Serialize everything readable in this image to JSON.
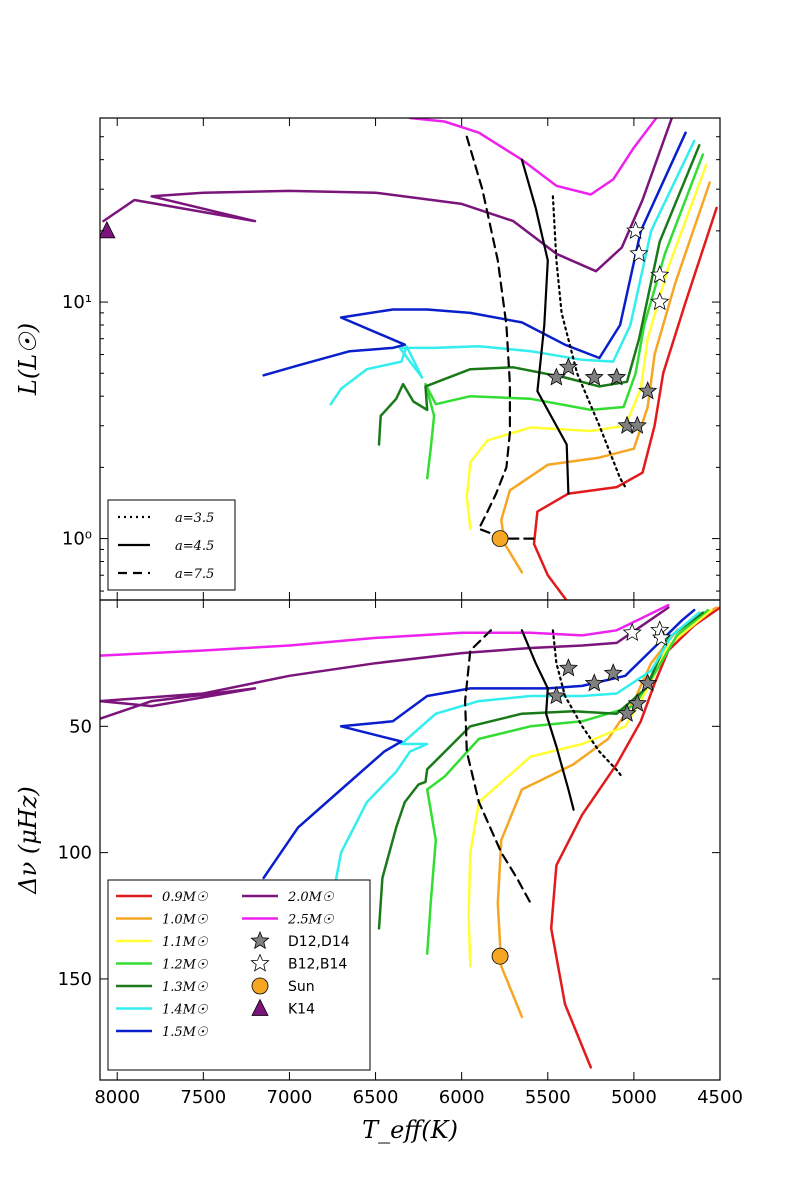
{
  "figure": {
    "xlabel": "T_eff(K)",
    "x_ticks": [
      "8000",
      "7500",
      "7000",
      "6500",
      "6000",
      "5500",
      "5000",
      "4500"
    ]
  },
  "chart_data": [
    {
      "type": "line",
      "panel": "top",
      "xlabel": "T_eff(K)",
      "ylabel": "L(L_sun)",
      "ylabel_display": "L(L☉)",
      "xlim": [
        8100,
        4500
      ],
      "ylim": [
        0.55,
        60
      ],
      "yscale": "log",
      "y_ticks": [
        1,
        10
      ],
      "y_tick_labels": [
        "10⁰",
        "10¹"
      ],
      "legend_position": "lower-left",
      "series": [
        {
          "name": "0.9M☉",
          "color": "#e31a1c",
          "x": [
            5350,
            5500,
            5580,
            5560,
            5380,
            5100,
            4950,
            4880,
            4830,
            4700,
            4520
          ],
          "y": [
            0.5,
            0.7,
            0.95,
            1.3,
            1.55,
            1.65,
            1.9,
            3.0,
            5.0,
            10.0,
            25.0
          ]
        },
        {
          "name": "1.0M☉",
          "color": "#f5a623",
          "x": [
            5650,
            5750,
            5770,
            5720,
            5500,
            5200,
            5000,
            4920,
            4880,
            4760,
            4560
          ],
          "y": [
            0.72,
            0.95,
            1.2,
            1.6,
            2.05,
            2.2,
            2.4,
            3.6,
            6.0,
            12.0,
            32.0
          ]
        },
        {
          "name": "1.1M☉",
          "color": "#ffff33",
          "x": [
            5950,
            5970,
            5950,
            5850,
            5600,
            5250,
            5050,
            4960,
            4920,
            4800,
            4580
          ],
          "y": [
            1.1,
            1.5,
            2.1,
            2.6,
            2.95,
            2.85,
            3.0,
            4.3,
            7.0,
            14.0,
            38.0
          ]
        },
        {
          "name": "1.2M☉",
          "color": "#33dd33",
          "x": [
            6200,
            6180,
            6160,
            6210,
            6150,
            5950,
            5600,
            5250,
            5060,
            4990,
            4940,
            4820,
            4600
          ],
          "y": [
            1.8,
            2.4,
            3.3,
            4.5,
            3.7,
            4.0,
            3.9,
            3.5,
            3.6,
            5.0,
            8.0,
            16.0,
            42.0
          ]
        },
        {
          "name": "1.3M☉",
          "color": "#1a7a1a",
          "x": [
            6480,
            6470,
            6380,
            6340,
            6280,
            6200,
            6210,
            5950,
            5700,
            5400,
            5200,
            5040,
            4970,
            4850,
            4620
          ],
          "y": [
            2.5,
            3.3,
            3.9,
            4.5,
            3.8,
            3.5,
            4.4,
            5.2,
            5.3,
            4.8,
            4.4,
            4.6,
            7.0,
            18.0,
            46.0
          ]
        },
        {
          "name": "1.4M☉",
          "color": "#33eeee",
          "x": [
            6760,
            6700,
            6550,
            6350,
            6320,
            6230,
            6360,
            6160,
            5900,
            5600,
            5300,
            5120,
            5020,
            4900,
            4650
          ],
          "y": [
            3.7,
            4.3,
            5.2,
            5.6,
            6.5,
            4.8,
            6.4,
            6.4,
            6.5,
            6.2,
            5.7,
            5.6,
            8.0,
            20.0,
            48.0
          ]
        },
        {
          "name": "1.5M☉",
          "color": "#0a1fcc",
          "x": [
            7150,
            6950,
            6650,
            6400,
            6330,
            6700,
            6400,
            6200,
            5950,
            5650,
            5400,
            5200,
            5080,
            4960,
            4700
          ],
          "y": [
            4.9,
            5.4,
            6.2,
            6.4,
            6.6,
            8.6,
            9.3,
            9.3,
            9.0,
            8.2,
            6.6,
            5.8,
            8.0,
            20.0,
            52.0
          ]
        },
        {
          "name": "2.0M☉",
          "color": "#7b147b",
          "x": [
            8080,
            7900,
            7200,
            7800,
            7500,
            7000,
            6500,
            6000,
            5700,
            5450,
            5220,
            5070,
            4950,
            4780
          ],
          "y": [
            22,
            27,
            22,
            28,
            29,
            29.5,
            29,
            26,
            22,
            16,
            13.5,
            17,
            27,
            60
          ]
        },
        {
          "name": "2.5M☉",
          "color": "#ee22ee",
          "x": [
            6300,
            6100,
            5900,
            5650,
            5450,
            5250,
            5120,
            5000,
            4870
          ],
          "y": [
            60,
            58,
            52,
            40,
            31,
            28.5,
            33,
            45,
            60
          ]
        },
        {
          "name": "a=3.5",
          "color": "#000000",
          "dash": "dotted",
          "x": [
            5470,
            5450,
            5420,
            5330,
            5200,
            5080,
            5050
          ],
          "y": [
            28,
            15,
            9,
            5,
            3.0,
            1.8,
            1.65
          ]
        },
        {
          "name": "a=4.5",
          "color": "#000000",
          "dash": "solid",
          "x": [
            5650,
            5570,
            5500,
            5520,
            5560,
            5390,
            5380,
            5380
          ],
          "y": [
            40,
            25,
            15,
            8,
            4.2,
            2.5,
            1.55,
            1.55
          ]
        },
        {
          "name": "a=7.5",
          "color": "#000000",
          "dash": "dashed",
          "x": [
            5970,
            5880,
            5790,
            5740,
            5720,
            5720,
            5740,
            5800,
            5850,
            5900,
            5750,
            5580
          ],
          "y": [
            50,
            30,
            15,
            8,
            4.5,
            2.8,
            2.0,
            1.55,
            1.3,
            1.1,
            1.0,
            1.0
          ]
        }
      ],
      "markers": {
        "D12,D14": {
          "x": [
            5450,
            5380,
            5230,
            5100,
            4920,
            5040,
            4980
          ],
          "y": [
            4.8,
            5.3,
            4.8,
            4.8,
            4.2,
            3.0,
            3.0
          ]
        },
        "B12,B14": {
          "x": [
            4990,
            4970,
            4850,
            4850
          ],
          "y": [
            20,
            16,
            13,
            10
          ]
        },
        "Sun": {
          "x": [
            5777
          ],
          "y": [
            1.0
          ]
        },
        "K14": {
          "x": [
            8060
          ],
          "y": [
            20
          ]
        }
      },
      "legend": [
        {
          "label": "a=3.5",
          "dash": "dotted"
        },
        {
          "label": "a=4.5",
          "dash": "solid"
        },
        {
          "label": "a=7.5",
          "dash": "dashed"
        }
      ]
    },
    {
      "type": "line",
      "panel": "bottom",
      "xlabel": "T_eff(K)",
      "ylabel": "Δν (μHz)",
      "xlim": [
        8100,
        4500
      ],
      "ylim": [
        190,
        0
      ],
      "yscale": "linear",
      "y_ticks": [
        50,
        100,
        150
      ],
      "legend_position": "lower-left",
      "series": [
        {
          "name": "0.9M☉",
          "color": "#e31a1c",
          "x": [
            5250,
            5400,
            5480,
            5450,
            5300,
            5100,
            4960,
            4880,
            4800,
            4650,
            4500
          ],
          "y": [
            185,
            160,
            130,
            105,
            85,
            65,
            48,
            33,
            20,
            10,
            3
          ]
        },
        {
          "name": "1.0M☉",
          "color": "#f5a623",
          "x": [
            5650,
            5770,
            5790,
            5770,
            5650,
            5350,
            5150,
            5000,
            4900,
            4750,
            4520
          ],
          "y": [
            165,
            145,
            120,
            95,
            75,
            65,
            55,
            40,
            25,
            12,
            3
          ]
        },
        {
          "name": "1.1M☉",
          "color": "#ffff33",
          "x": [
            5950,
            5960,
            5950,
            5900,
            5600,
            5300,
            5050,
            4920,
            4800,
            4550
          ],
          "y": [
            145,
            125,
            100,
            80,
            62,
            57,
            50,
            35,
            18,
            4
          ]
        },
        {
          "name": "1.2M☉",
          "color": "#33dd33",
          "x": [
            6200,
            6180,
            6150,
            6200,
            6100,
            5900,
            5600,
            5300,
            5000,
            4870,
            4750,
            4570
          ],
          "y": [
            140,
            120,
            95,
            75,
            70,
            55,
            50,
            48,
            42,
            28,
            14,
            4
          ]
        },
        {
          "name": "1.3M☉",
          "color": "#1a7a1a",
          "x": [
            6480,
            6460,
            6380,
            6330,
            6250,
            6210,
            6200,
            5950,
            5650,
            5350,
            5100,
            4930,
            4800,
            4600
          ],
          "y": [
            130,
            110,
            90,
            80,
            73,
            72,
            67,
            50,
            45,
            44,
            45,
            35,
            15,
            5
          ]
        },
        {
          "name": "1.4M☉",
          "color": "#33eeee",
          "x": [
            6750,
            6700,
            6550,
            6380,
            6300,
            6200,
            6350,
            6150,
            5900,
            5600,
            5300,
            5100,
            4900,
            4780,
            4620
          ],
          "y": [
            118,
            100,
            80,
            68,
            60,
            57,
            57,
            45,
            40,
            38,
            38,
            37,
            28,
            14,
            5
          ]
        },
        {
          "name": "1.5M☉",
          "color": "#0a1fcc",
          "x": [
            7150,
            6950,
            6700,
            6450,
            6350,
            6700,
            6400,
            6200,
            5950,
            5700,
            5500,
            5300,
            5050,
            4900,
            4720,
            4650
          ],
          "y": [
            110,
            90,
            75,
            60,
            56,
            50,
            48,
            38,
            35,
            35,
            35,
            34,
            30,
            20,
            8,
            4
          ]
        },
        {
          "name": "2.0M☉",
          "color": "#7b147b",
          "x": [
            8100,
            7800,
            7200,
            7800,
            8100,
            7500,
            7000,
            6500,
            6000,
            5600,
            5300,
            5100,
            4950,
            4800
          ],
          "y": [
            47,
            40,
            35,
            42,
            40,
            37,
            30,
            25,
            21,
            19,
            18,
            17,
            10,
            3
          ]
        },
        {
          "name": "2.5M☉",
          "color": "#ee22ee",
          "x": [
            8100,
            7500,
            7000,
            6500,
            6000,
            5600,
            5300,
            5100,
            4950,
            4800
          ],
          "y": [
            22,
            20,
            18,
            15,
            13,
            13,
            14,
            12,
            7,
            2
          ]
        },
        {
          "name": "a=3.5",
          "color": "#000000",
          "dash": "dotted",
          "x": [
            5470,
            5450,
            5400,
            5300,
            5200,
            5090,
            5070
          ],
          "y": [
            12,
            25,
            38,
            50,
            60,
            68,
            70
          ]
        },
        {
          "name": "a=4.5",
          "color": "#000000",
          "dash": "solid",
          "x": [
            5650,
            5570,
            5500,
            5510,
            5450,
            5380,
            5350
          ],
          "y": [
            12,
            25,
            35,
            45,
            58,
            75,
            83
          ]
        },
        {
          "name": "a=7.5",
          "color": "#000000",
          "dash": "dashed",
          "x": [
            5830,
            5950,
            5980,
            5970,
            5900,
            5770,
            5680,
            5600
          ],
          "y": [
            12,
            20,
            40,
            60,
            80,
            100,
            110,
            120
          ]
        }
      ],
      "markers": {
        "D12,D14": {
          "x": [
            5380,
            5450,
            5230,
            5120,
            4920,
            4980,
            5040
          ],
          "y": [
            27,
            38,
            33,
            29,
            33,
            41,
            45
          ]
        },
        "B12,B14": {
          "x": [
            5010,
            4850,
            4840
          ],
          "y": [
            13,
            12,
            15
          ]
        },
        "Sun": {
          "x": [
            5777
          ],
          "y": [
            141
          ]
        }
      },
      "legend": [
        {
          "label": "0.9M☉",
          "color": "#e31a1c"
        },
        {
          "label": "1.0M☉",
          "color": "#f5a623"
        },
        {
          "label": "1.1M☉",
          "color": "#ffff33"
        },
        {
          "label": "1.2M☉",
          "color": "#33dd33"
        },
        {
          "label": "1.3M☉",
          "color": "#1a7a1a"
        },
        {
          "label": "1.4M☉",
          "color": "#33eeee"
        },
        {
          "label": "1.5M☉",
          "color": "#0a1fcc"
        },
        {
          "label": "2.0M☉",
          "color": "#7b147b"
        },
        {
          "label": "2.5M☉",
          "color": "#ee22ee"
        },
        {
          "label": "D12,D14",
          "marker": "star-filled"
        },
        {
          "label": "B12,B14",
          "marker": "star-open"
        },
        {
          "label": "Sun",
          "marker": "circle"
        },
        {
          "label": "K14",
          "marker": "triangle"
        }
      ]
    }
  ]
}
